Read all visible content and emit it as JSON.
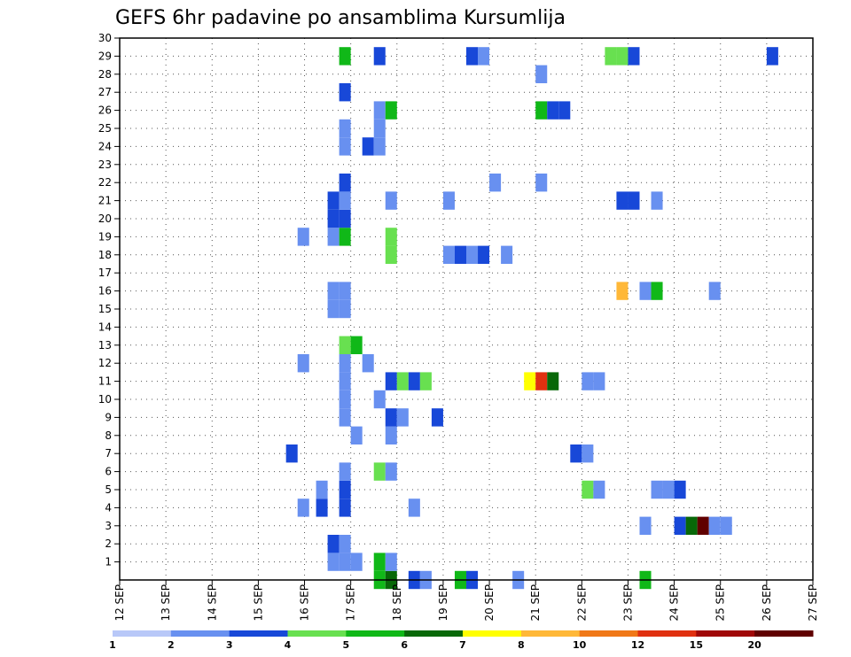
{
  "chart_data": {
    "type": "heatmap",
    "title": "GEFS 6hr padavine po ansamblima Kursumlija",
    "y_members": [
      1,
      2,
      3,
      4,
      5,
      6,
      7,
      8,
      9,
      10,
      11,
      12,
      13,
      14,
      15,
      16,
      17,
      18,
      19,
      20,
      21,
      22,
      23,
      24,
      25,
      26,
      27,
      28,
      29,
      30
    ],
    "x_tick_labels": [
      "12 SEP",
      "13 SEP",
      "14 SEP",
      "15 SEP",
      "16 SEP",
      "17 SEP",
      "18 SEP",
      "19 SEP",
      "20 SEP",
      "21 SEP",
      "22 SEP",
      "23 SEP",
      "24 SEP",
      "25 SEP",
      "26 SEP",
      "27 SEP"
    ],
    "x_range_days": [
      0,
      15
    ],
    "y_range": [
      0,
      30
    ],
    "grid": true,
    "colorbar": {
      "labels": [
        "1",
        "2",
        "3",
        "4",
        "5",
        "6",
        "7",
        "8",
        "10",
        "12",
        "15",
        "20"
      ],
      "colors": [
        "#b8c8f8",
        "#6890f0",
        "#1848d8",
        "#68e050",
        "#10b818",
        "#086808",
        "#ffff00",
        "#ffb838",
        "#f07818",
        "#e03010",
        "#a00808",
        "#600000"
      ]
    },
    "cells": [
      {
        "day": 3.85,
        "member": 4,
        "level": 1
      },
      {
        "day": 3.85,
        "member": 12,
        "level": 1
      },
      {
        "day": 3.85,
        "member": 19,
        "level": 1
      },
      {
        "day": 3.6,
        "member": 7,
        "level": 2
      },
      {
        "day": 4.25,
        "member": 4,
        "level": 2
      },
      {
        "day": 4.25,
        "member": 5,
        "level": 1
      },
      {
        "day": 4.5,
        "member": 1,
        "level": 1
      },
      {
        "day": 4.5,
        "member": 2,
        "level": 2
      },
      {
        "day": 4.5,
        "member": 15,
        "level": 1
      },
      {
        "day": 4.5,
        "member": 16,
        "level": 1
      },
      {
        "day": 4.5,
        "member": 19,
        "level": 1
      },
      {
        "day": 4.5,
        "member": 20,
        "level": 2
      },
      {
        "day": 4.5,
        "member": 21,
        "level": 2
      },
      {
        "day": 4.75,
        "member": 1,
        "level": 1
      },
      {
        "day": 4.75,
        "member": 2,
        "level": 1
      },
      {
        "day": 4.75,
        "member": 4,
        "level": 2
      },
      {
        "day": 4.75,
        "member": 5,
        "level": 2
      },
      {
        "day": 4.75,
        "member": 6,
        "level": 1
      },
      {
        "day": 4.75,
        "member": 9,
        "level": 1
      },
      {
        "day": 4.75,
        "member": 10,
        "level": 1
      },
      {
        "day": 4.75,
        "member": 11,
        "level": 1
      },
      {
        "day": 4.75,
        "member": 12,
        "level": 1
      },
      {
        "day": 4.75,
        "member": 13,
        "level": 3
      },
      {
        "day": 4.75,
        "member": 15,
        "level": 1
      },
      {
        "day": 4.75,
        "member": 16,
        "level": 1
      },
      {
        "day": 4.75,
        "member": 19,
        "level": 4
      },
      {
        "day": 4.75,
        "member": 20,
        "level": 2
      },
      {
        "day": 4.75,
        "member": 21,
        "level": 1
      },
      {
        "day": 4.75,
        "member": 22,
        "level": 2
      },
      {
        "day": 4.75,
        "member": 24,
        "level": 1
      },
      {
        "day": 4.75,
        "member": 25,
        "level": 1
      },
      {
        "day": 4.75,
        "member": 27,
        "level": 2
      },
      {
        "day": 4.75,
        "member": 29,
        "level": 4
      },
      {
        "day": 5.0,
        "member": 1,
        "level": 1
      },
      {
        "day": 5.0,
        "member": 8,
        "level": 1
      },
      {
        "day": 5.0,
        "member": 13,
        "level": 4
      },
      {
        "day": 5.25,
        "member": 12,
        "level": 1
      },
      {
        "day": 5.25,
        "member": 24,
        "level": 2
      },
      {
        "day": 5.5,
        "member": 0,
        "level": 4
      },
      {
        "day": 5.5,
        "member": 1,
        "level": 4
      },
      {
        "day": 5.5,
        "member": 6,
        "level": 3
      },
      {
        "day": 5.5,
        "member": 10,
        "level": 1
      },
      {
        "day": 5.5,
        "member": 24,
        "level": 1
      },
      {
        "day": 5.5,
        "member": 25,
        "level": 1
      },
      {
        "day": 5.5,
        "member": 26,
        "level": 1
      },
      {
        "day": 5.5,
        "member": 29,
        "level": 2
      },
      {
        "day": 5.75,
        "member": 0,
        "level": 5
      },
      {
        "day": 5.75,
        "member": 1,
        "level": 1
      },
      {
        "day": 5.75,
        "member": 6,
        "level": 1
      },
      {
        "day": 5.75,
        "member": 8,
        "level": 1
      },
      {
        "day": 5.75,
        "member": 9,
        "level": 2
      },
      {
        "day": 5.75,
        "member": 11,
        "level": 2
      },
      {
        "day": 5.75,
        "member": 18,
        "level": 3
      },
      {
        "day": 5.75,
        "member": 19,
        "level": 3
      },
      {
        "day": 5.75,
        "member": 21,
        "level": 1
      },
      {
        "day": 5.75,
        "member": 26,
        "level": 4
      },
      {
        "day": 6.0,
        "member": 9,
        "level": 1
      },
      {
        "day": 6.0,
        "member": 11,
        "level": 3
      },
      {
        "day": 6.25,
        "member": 0,
        "level": 2
      },
      {
        "day": 6.25,
        "member": 4,
        "level": 1
      },
      {
        "day": 6.25,
        "member": 11,
        "level": 2
      },
      {
        "day": 6.5,
        "member": 0,
        "level": 1
      },
      {
        "day": 6.5,
        "member": 11,
        "level": 3
      },
      {
        "day": 6.75,
        "member": 9,
        "level": 2
      },
      {
        "day": 7.0,
        "member": 18,
        "level": 1
      },
      {
        "day": 7.0,
        "member": 21,
        "level": 1
      },
      {
        "day": 7.25,
        "member": 0,
        "level": 4
      },
      {
        "day": 7.25,
        "member": 18,
        "level": 2
      },
      {
        "day": 7.5,
        "member": 0,
        "level": 2
      },
      {
        "day": 7.5,
        "member": 18,
        "level": 1
      },
      {
        "day": 7.5,
        "member": 29,
        "level": 2
      },
      {
        "day": 7.75,
        "member": 18,
        "level": 2
      },
      {
        "day": 7.75,
        "member": 29,
        "level": 1
      },
      {
        "day": 8.0,
        "member": 22,
        "level": 1
      },
      {
        "day": 8.25,
        "member": 18,
        "level": 1
      },
      {
        "day": 8.5,
        "member": 0,
        "level": 1
      },
      {
        "day": 8.75,
        "member": 11,
        "level": 6
      },
      {
        "day": 9.0,
        "member": 11,
        "level": 9
      },
      {
        "day": 9.0,
        "member": 22,
        "level": 1
      },
      {
        "day": 9.0,
        "member": 26,
        "level": 4
      },
      {
        "day": 9.0,
        "member": 28,
        "level": 1
      },
      {
        "day": 9.25,
        "member": 11,
        "level": 5
      },
      {
        "day": 9.25,
        "member": 26,
        "level": 2
      },
      {
        "day": 9.5,
        "member": 26,
        "level": 2
      },
      {
        "day": 9.75,
        "member": 7,
        "level": 2
      },
      {
        "day": 10.0,
        "member": 5,
        "level": 3
      },
      {
        "day": 10.0,
        "member": 7,
        "level": 1
      },
      {
        "day": 10.0,
        "member": 11,
        "level": 1
      },
      {
        "day": 10.25,
        "member": 5,
        "level": 1
      },
      {
        "day": 10.25,
        "member": 11,
        "level": 1
      },
      {
        "day": 10.5,
        "member": 29,
        "level": 3
      },
      {
        "day": 10.75,
        "member": 16,
        "level": 7
      },
      {
        "day": 10.75,
        "member": 21,
        "level": 2
      },
      {
        "day": 10.75,
        "member": 29,
        "level": 3
      },
      {
        "day": 11.0,
        "member": 21,
        "level": 2
      },
      {
        "day": 11.0,
        "member": 29,
        "level": 2
      },
      {
        "day": 11.25,
        "member": 0,
        "level": 4
      },
      {
        "day": 11.25,
        "member": 3,
        "level": 1
      },
      {
        "day": 11.25,
        "member": 16,
        "level": 1
      },
      {
        "day": 11.5,
        "member": 5,
        "level": 1
      },
      {
        "day": 11.5,
        "member": 16,
        "level": 4
      },
      {
        "day": 11.5,
        "member": 21,
        "level": 1
      },
      {
        "day": 11.75,
        "member": 5,
        "level": 1
      },
      {
        "day": 12.0,
        "member": 3,
        "level": 2
      },
      {
        "day": 12.0,
        "member": 5,
        "level": 2
      },
      {
        "day": 12.25,
        "member": 3,
        "level": 5
      },
      {
        "day": 12.5,
        "member": 3,
        "level": 11
      },
      {
        "day": 12.75,
        "member": 3,
        "level": 1
      },
      {
        "day": 12.75,
        "member": 16,
        "level": 1
      },
      {
        "day": 13.0,
        "member": 3,
        "level": 1
      },
      {
        "day": 14.0,
        "member": 29,
        "level": 2
      }
    ]
  }
}
